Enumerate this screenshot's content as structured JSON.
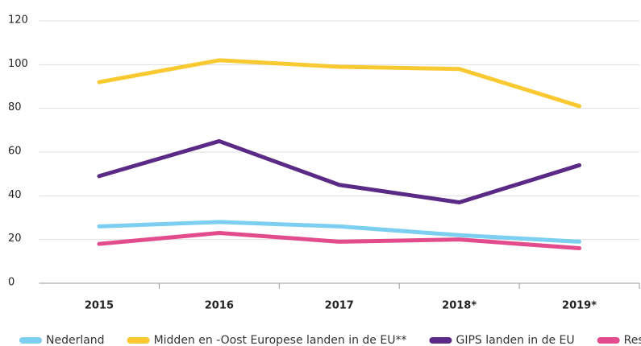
{
  "chart_data": {
    "type": "line",
    "categories": [
      "2015",
      "2016",
      "2017",
      "2018*",
      "2019*"
    ],
    "series": [
      {
        "name": "Nederland",
        "color": "#7ccff0",
        "values": [
          26,
          28,
          26,
          22,
          19
        ]
      },
      {
        "name": "Midden en -Oost Europese landen in de EU**",
        "color": "#f9c932",
        "values": [
          92,
          102,
          99,
          98,
          81
        ]
      },
      {
        "name": "GIPS landen in de EU",
        "color": "#5b2a86",
        "values": [
          49,
          65,
          45,
          37,
          54
        ]
      },
      {
        "name": "Rest",
        "color": "#e24c8c",
        "values": [
          18,
          23,
          19,
          20,
          16
        ]
      }
    ],
    "ylim": [
      0,
      120
    ],
    "yticks": [
      0,
      20,
      40,
      60,
      80,
      100,
      120
    ],
    "grid": true
  }
}
